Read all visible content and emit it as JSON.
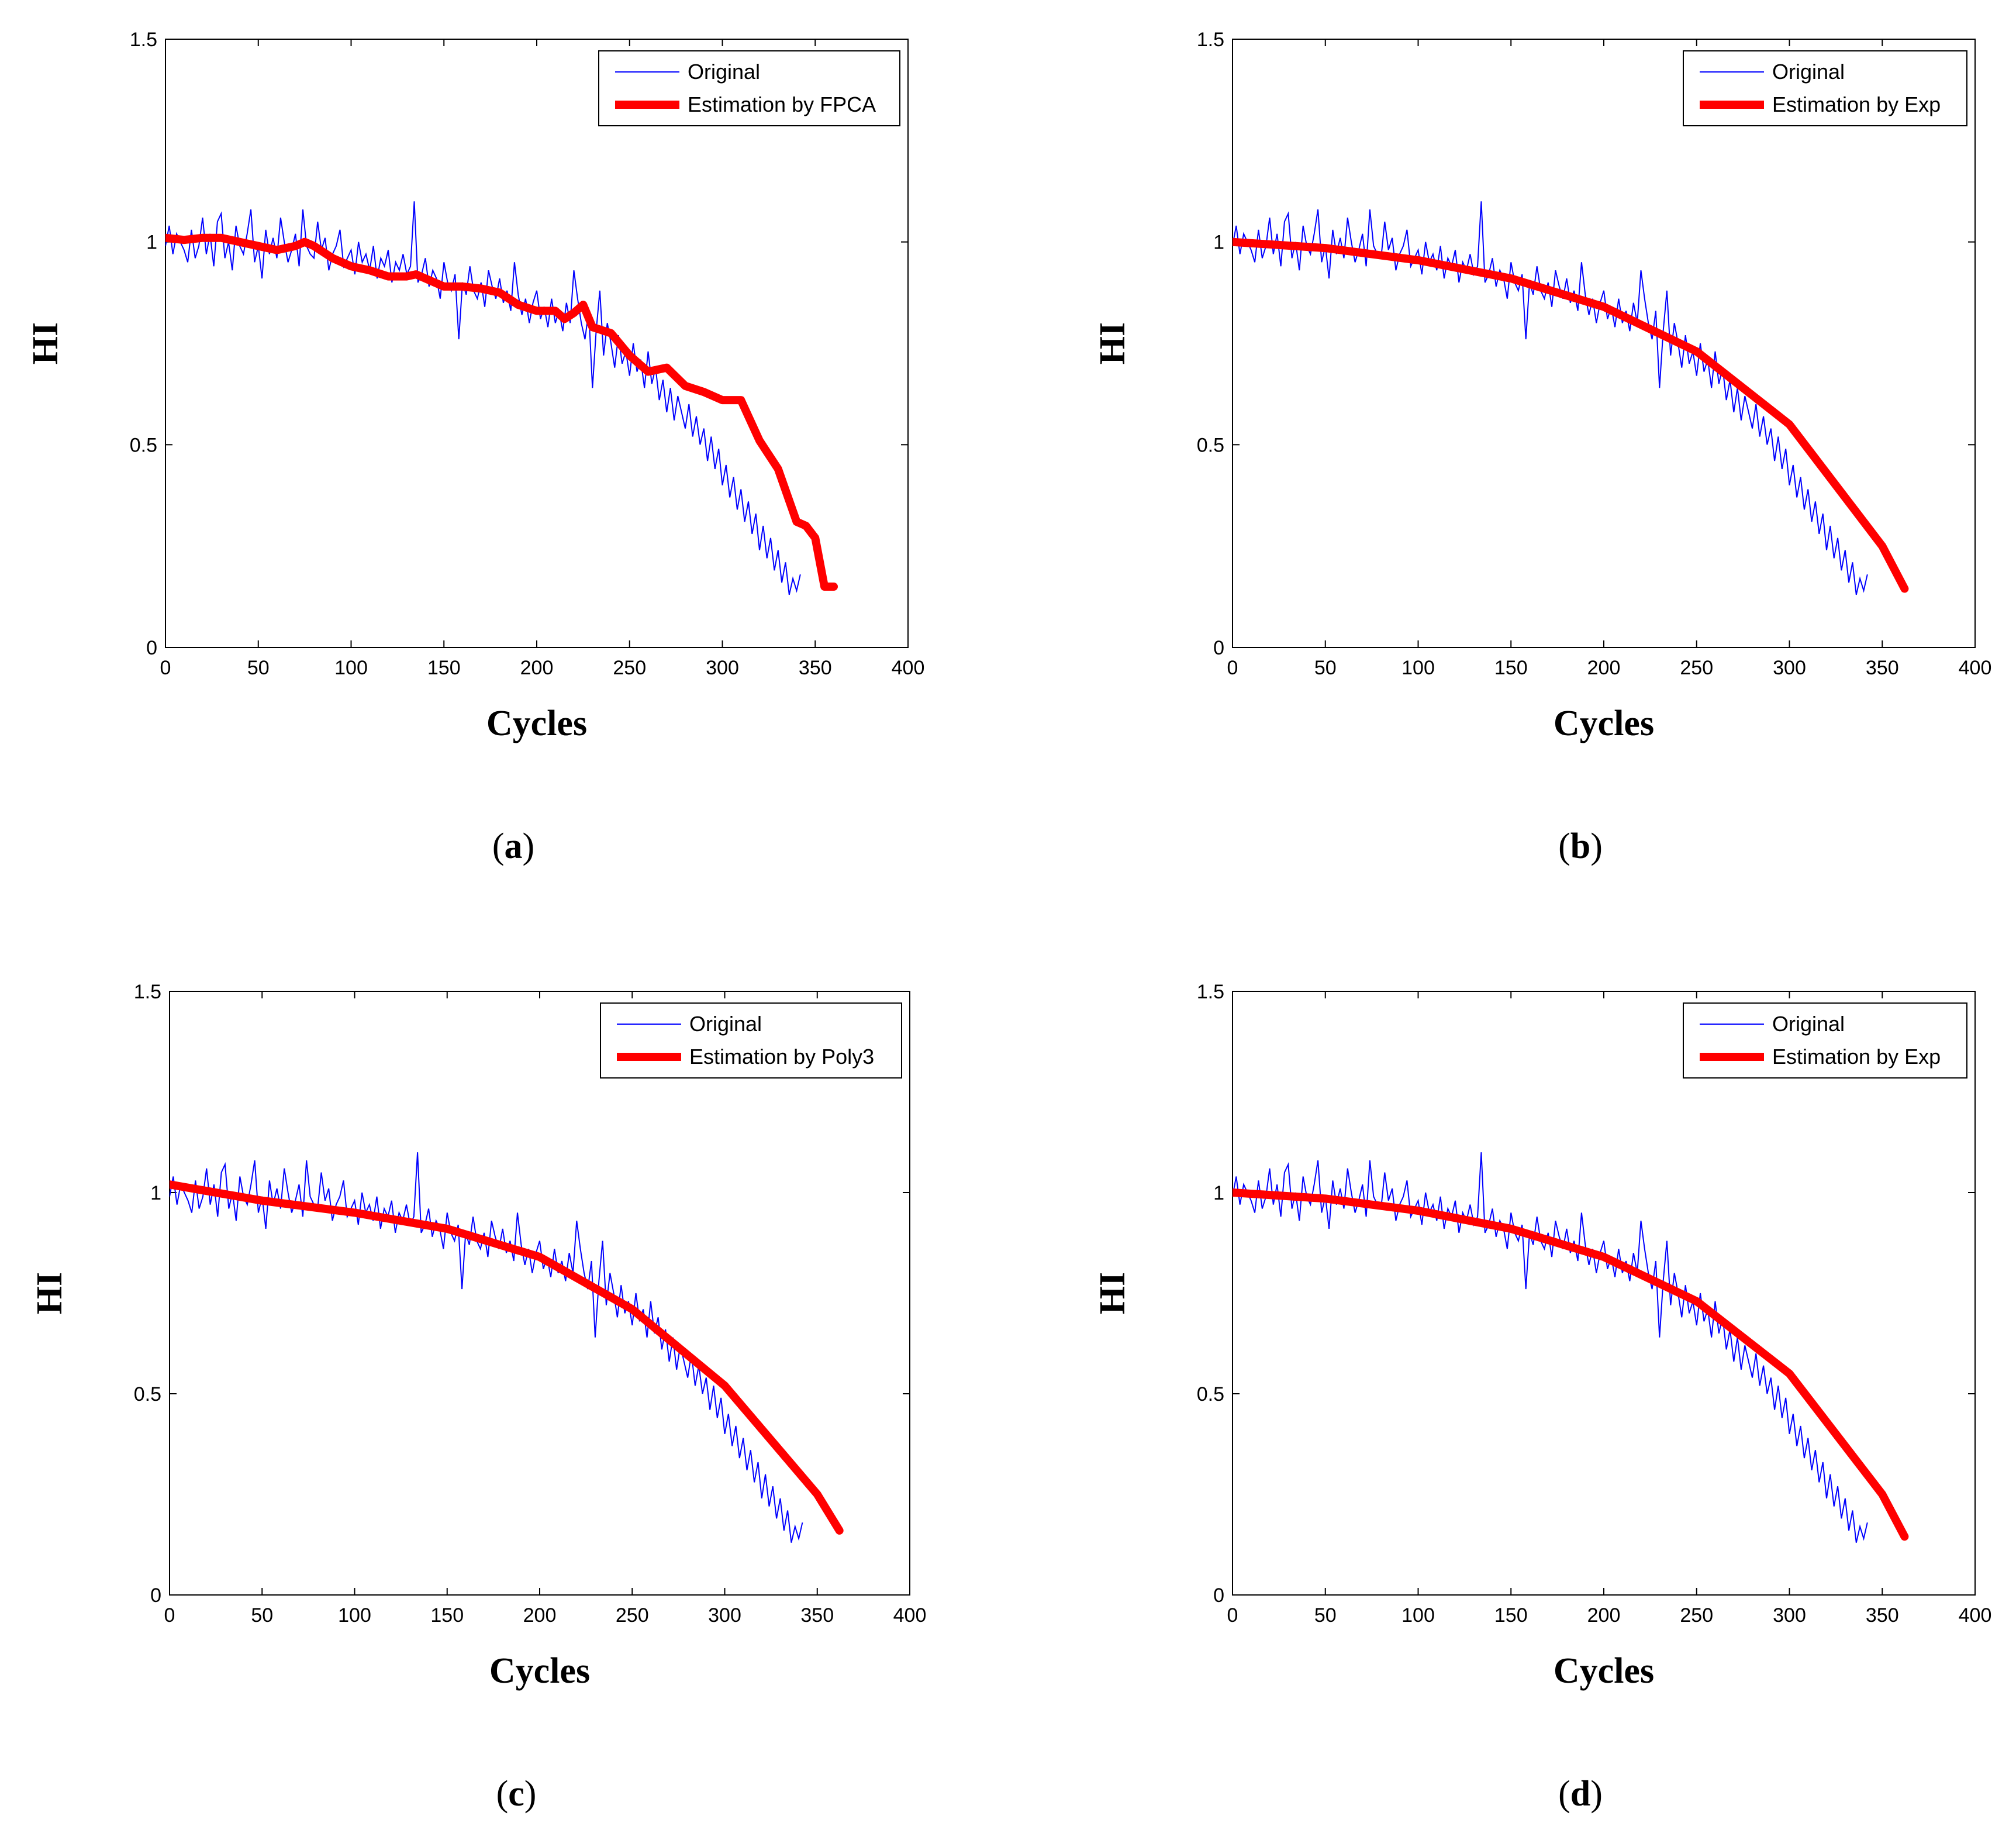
{
  "chart_data": [
    {
      "type": "line",
      "panel_label": "a",
      "xlabel": "Cycles",
      "ylabel": "HI",
      "xlim": [
        0,
        400
      ],
      "ylim": [
        0,
        1.5
      ],
      "x_ticks": [
        "0",
        "50",
        "100",
        "150",
        "200",
        "250",
        "300",
        "350",
        "400"
      ],
      "y_ticks": [
        "0",
        "0.5",
        "1",
        "1.5"
      ],
      "grid": false,
      "legend": {
        "placement": "top-right",
        "entries": [
          "Original",
          "Estimation by FPCA"
        ]
      },
      "series": [
        {
          "name": "Original",
          "color": "#0000ff",
          "style": "thin"
        },
        {
          "name": "Estimation by FPCA",
          "color": "#ff0000",
          "style": "thick",
          "x": [
            0,
            10,
            20,
            30,
            40,
            50,
            60,
            70,
            75,
            80,
            90,
            100,
            110,
            120,
            130,
            135,
            140,
            150,
            160,
            170,
            180,
            190,
            200,
            210,
            215,
            220,
            225,
            230,
            240,
            250,
            260,
            270,
            280,
            290,
            300,
            310,
            320,
            330,
            340,
            345,
            350,
            355,
            360
          ],
          "y": [
            1.01,
            1.005,
            1.01,
            1.01,
            1.0,
            0.99,
            0.98,
            0.99,
            1.0,
            0.99,
            0.96,
            0.94,
            0.93,
            0.915,
            0.915,
            0.92,
            0.91,
            0.89,
            0.89,
            0.885,
            0.875,
            0.845,
            0.83,
            0.83,
            0.81,
            0.825,
            0.845,
            0.79,
            0.775,
            0.72,
            0.68,
            0.69,
            0.645,
            0.63,
            0.61,
            0.61,
            0.51,
            0.44,
            0.31,
            0.3,
            0.27,
            0.15,
            0.15
          ]
        }
      ]
    },
    {
      "type": "line",
      "panel_label": "b",
      "xlabel": "Cycles",
      "ylabel": "HI",
      "xlim": [
        0,
        400
      ],
      "ylim": [
        0,
        1.5
      ],
      "x_ticks": [
        "0",
        "50",
        "100",
        "150",
        "200",
        "250",
        "300",
        "350",
        "400"
      ],
      "y_ticks": [
        "0",
        "0.5",
        "1",
        "1.5"
      ],
      "grid": false,
      "legend": {
        "placement": "top-right",
        "entries": [
          "Original",
          "Estimation by Exp"
        ]
      },
      "series": [
        {
          "name": "Original",
          "color": "#0000ff",
          "style": "thin"
        },
        {
          "name": "Estimation by Exp",
          "color": "#ff0000",
          "style": "thick",
          "x": [
            0,
            50,
            100,
            150,
            200,
            250,
            300,
            350,
            362
          ],
          "y": [
            1.0,
            0.985,
            0.955,
            0.91,
            0.84,
            0.73,
            0.55,
            0.25,
            0.145
          ]
        }
      ]
    },
    {
      "type": "line",
      "panel_label": "c",
      "xlabel": "Cycles",
      "ylabel": "HI",
      "xlim": [
        0,
        400
      ],
      "ylim": [
        0,
        1.5
      ],
      "x_ticks": [
        "0",
        "50",
        "100",
        "150",
        "200",
        "250",
        "300",
        "350",
        "400"
      ],
      "y_ticks": [
        "0",
        "0.5",
        "1",
        "1.5"
      ],
      "grid": false,
      "legend": {
        "placement": "top-right",
        "entries": [
          "Original",
          "Estimation by Poly3"
        ]
      },
      "series": [
        {
          "name": "Original",
          "color": "#0000ff",
          "style": "thin"
        },
        {
          "name": "Estimation by Poly3",
          "color": "#ff0000",
          "style": "thick",
          "x": [
            0,
            50,
            100,
            150,
            200,
            250,
            300,
            350,
            362
          ],
          "y": [
            1.02,
            0.98,
            0.95,
            0.91,
            0.84,
            0.71,
            0.52,
            0.25,
            0.16
          ]
        }
      ]
    },
    {
      "type": "line",
      "panel_label": "d",
      "xlabel": "Cycles",
      "ylabel": "HI",
      "xlim": [
        0,
        400
      ],
      "ylim": [
        0,
        1.5
      ],
      "x_ticks": [
        "0",
        "50",
        "100",
        "150",
        "200",
        "250",
        "300",
        "350",
        "400"
      ],
      "y_ticks": [
        "0",
        "0.5",
        "1",
        "1.5"
      ],
      "grid": false,
      "legend": {
        "placement": "top-right",
        "entries": [
          "Original",
          "Estimation by Exp"
        ]
      },
      "series": [
        {
          "name": "Original",
          "color": "#0000ff",
          "style": "thin"
        },
        {
          "name": "Estimation by Exp",
          "color": "#ff0000",
          "style": "thick",
          "x": [
            0,
            50,
            100,
            150,
            200,
            250,
            300,
            350,
            362
          ],
          "y": [
            1.0,
            0.985,
            0.955,
            0.91,
            0.84,
            0.73,
            0.55,
            0.25,
            0.145
          ]
        }
      ]
    }
  ],
  "original_series": {
    "name": "Original",
    "x_start": 0,
    "x_step": 2,
    "y": [
      0.99,
      1.04,
      0.97,
      1.02,
      1.0,
      0.98,
      0.95,
      1.03,
      0.96,
      0.99,
      1.06,
      0.97,
      1.02,
      0.94,
      1.05,
      1.07,
      0.96,
      1.0,
      0.93,
      1.04,
      0.99,
      0.97,
      1.02,
      1.08,
      0.95,
      0.99,
      0.91,
      1.03,
      0.97,
      1.01,
      0.96,
      1.06,
      1.0,
      0.95,
      0.98,
      1.02,
      0.94,
      1.08,
      0.99,
      0.97,
      0.96,
      1.05,
      0.98,
      1.01,
      0.93,
      0.97,
      0.99,
      1.03,
      0.94,
      0.96,
      0.98,
      0.92,
      1.0,
      0.95,
      0.97,
      0.93,
      0.99,
      0.91,
      0.96,
      0.94,
      0.98,
      0.9,
      0.95,
      0.93,
      0.97,
      0.92,
      0.94,
      1.1,
      0.9,
      0.92,
      0.96,
      0.89,
      0.93,
      0.91,
      0.86,
      0.95,
      0.9,
      0.88,
      0.92,
      0.76,
      0.9,
      0.87,
      0.94,
      0.88,
      0.86,
      0.9,
      0.84,
      0.93,
      0.89,
      0.86,
      0.91,
      0.85,
      0.88,
      0.83,
      0.95,
      0.87,
      0.82,
      0.86,
      0.8,
      0.85,
      0.88,
      0.81,
      0.84,
      0.79,
      0.86,
      0.8,
      0.83,
      0.78,
      0.85,
      0.8,
      0.93,
      0.86,
      0.8,
      0.76,
      0.83,
      0.64,
      0.78,
      0.88,
      0.72,
      0.8,
      0.75,
      0.69,
      0.77,
      0.7,
      0.73,
      0.67,
      0.75,
      0.68,
      0.71,
      0.64,
      0.73,
      0.65,
      0.69,
      0.61,
      0.66,
      0.58,
      0.64,
      0.56,
      0.62,
      0.58,
      0.54,
      0.6,
      0.52,
      0.57,
      0.5,
      0.54,
      0.46,
      0.52,
      0.44,
      0.49,
      0.4,
      0.45,
      0.37,
      0.42,
      0.34,
      0.39,
      0.31,
      0.36,
      0.28,
      0.33,
      0.24,
      0.3,
      0.22,
      0.27,
      0.19,
      0.24,
      0.16,
      0.21,
      0.13,
      0.17,
      0.14,
      0.18
    ]
  }
}
